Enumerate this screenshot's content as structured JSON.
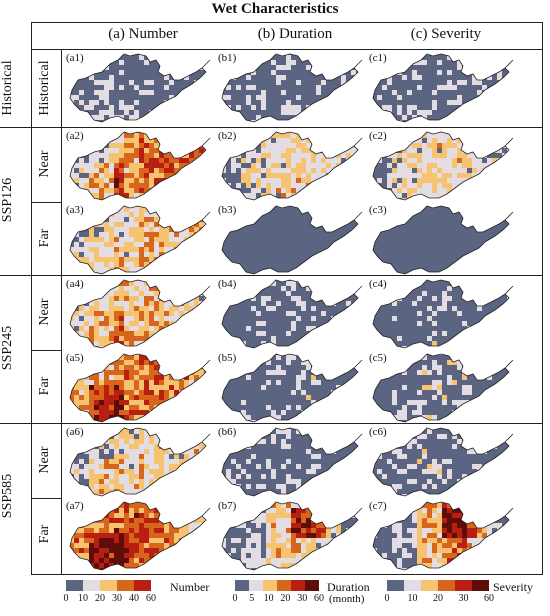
{
  "title": "Wet Characteristics",
  "columns": [
    "(a) Number",
    "(b) Duration",
    "(c) Severity"
  ],
  "row_groups": [
    {
      "label": "Historical",
      "sub": [
        "Historical"
      ]
    },
    {
      "label": "SSP126",
      "sub": [
        "Near",
        "Far"
      ]
    },
    {
      "label": "SSP245",
      "sub": [
        "Near",
        "Far"
      ]
    },
    {
      "label": "SSP585",
      "sub": [
        "Near",
        "Far"
      ]
    }
  ],
  "panels": [
    [
      "(a1)",
      "(b1)",
      "(c1)"
    ],
    [
      "(a2)",
      "(b2)",
      "(c2)"
    ],
    [
      "(a3)",
      "(b3)",
      "(c3)"
    ],
    [
      "(a4)",
      "(b4)",
      "(c4)"
    ],
    [
      "(a5)",
      "(b5)",
      "(c5)"
    ],
    [
      "(a6)",
      "(b6)",
      "(c6)"
    ],
    [
      "(a7)",
      "(b7)",
      "(c7)"
    ]
  ],
  "colors": [
    "#5b6480",
    "#e3dde3",
    "#f6c470",
    "#d8651c",
    "#b81f10",
    "#5e0d0a"
  ],
  "legends": [
    {
      "name": "Number",
      "ticks": [
        "0",
        "10",
        "20",
        "30",
        "40",
        "60"
      ],
      "n_bins": 5
    },
    {
      "name": "Duration",
      "unit": "(month)",
      "ticks": [
        "0",
        "5",
        "10",
        "20",
        "30",
        "60"
      ],
      "n_bins": 6
    },
    {
      "name": "Severity",
      "ticks": [
        "0",
        "10",
        "20",
        "30",
        "60"
      ],
      "n_bins": 6
    }
  ],
  "map_levels": [
    [
      [
        0.05,
        0.08,
        0.05,
        0.05,
        0.04,
        0.03
      ],
      [
        0.02,
        0.03,
        0.02,
        0.01,
        0.01,
        0.0
      ],
      [
        0.02,
        0.05,
        0.03,
        0.02,
        0.01,
        0.01
      ]
    ],
    [
      [
        0.18,
        0.25,
        0.45,
        0.55,
        0.6,
        0.62
      ],
      [
        0.1,
        0.22,
        0.28,
        0.3,
        0.28,
        0.25
      ],
      [
        0.08,
        0.2,
        0.28,
        0.3,
        0.25,
        0.22
      ]
    ],
    [
      [
        0.15,
        0.22,
        0.3,
        0.4,
        0.35,
        0.45
      ],
      [
        0.0,
        0.02,
        0.01,
        0.0,
        0.0,
        0.0
      ],
      [
        0.0,
        0.03,
        0.02,
        0.01,
        0.0,
        0.0
      ]
    ],
    [
      [
        0.2,
        0.3,
        0.4,
        0.42,
        0.35,
        0.3
      ],
      [
        0.02,
        0.08,
        0.12,
        0.1,
        0.05,
        0.03
      ],
      [
        0.02,
        0.08,
        0.14,
        0.1,
        0.05,
        0.03
      ]
    ],
    [
      [
        0.3,
        0.45,
        0.5,
        0.55,
        0.5,
        0.4
      ],
      [
        0.02,
        0.06,
        0.12,
        0.15,
        0.1,
        0.04
      ],
      [
        0.02,
        0.08,
        0.14,
        0.15,
        0.1,
        0.04
      ]
    ],
    [
      [
        0.15,
        0.25,
        0.3,
        0.35,
        0.3,
        0.4
      ],
      [
        0.08,
        0.1,
        0.12,
        0.1,
        0.08,
        0.06
      ],
      [
        0.1,
        0.12,
        0.14,
        0.12,
        0.1,
        0.08
      ]
    ],
    [
      [
        0.35,
        0.55,
        0.62,
        0.6,
        0.5,
        0.3
      ],
      [
        0.05,
        0.12,
        0.3,
        0.35,
        0.25,
        0.05
      ],
      [
        0.05,
        0.14,
        0.4,
        0.5,
        0.3,
        0.05
      ]
    ]
  ]
}
